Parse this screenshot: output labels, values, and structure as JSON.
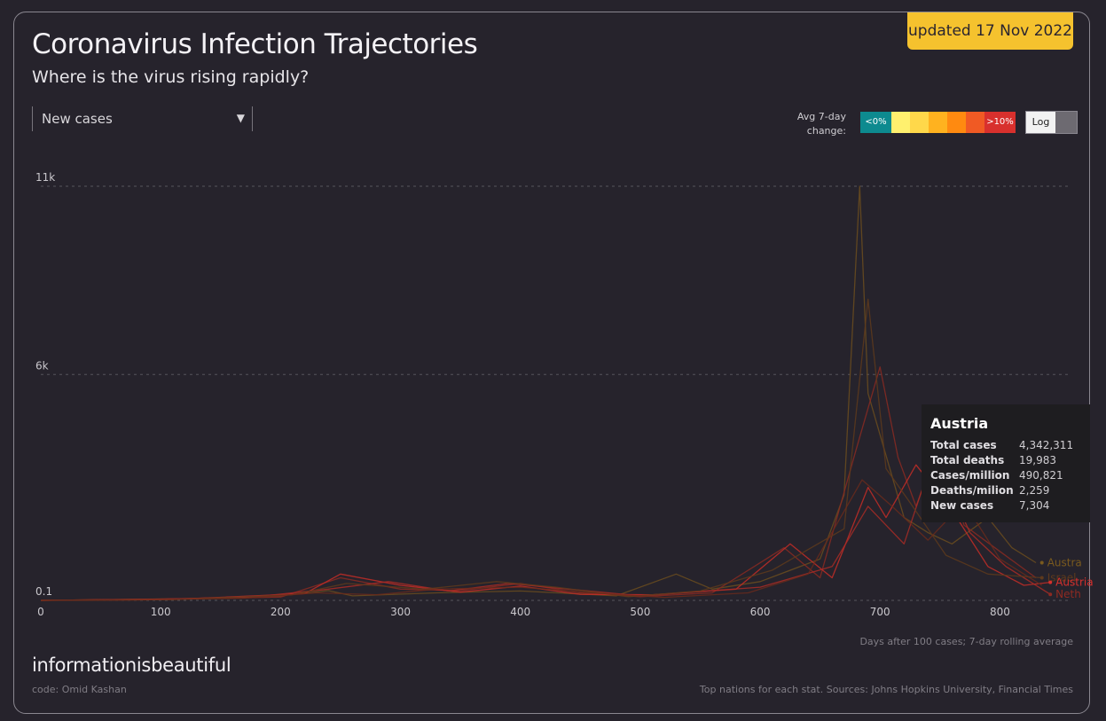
{
  "header": {
    "updated": "updated 17 Nov 2022",
    "title": "Coronavirus Infection Trajectories",
    "subtitle": "Where is the virus rising rapidly?"
  },
  "controls": {
    "stat_select": "New cases",
    "avg_label_line1": "Avg 7-day",
    "avg_label_line2": "change:",
    "legend": [
      {
        "label": "<0%",
        "color": "#0d8a8f"
      },
      {
        "label": "",
        "color": "#fff06e"
      },
      {
        "label": "",
        "color": "#ffd84a"
      },
      {
        "label": "",
        "color": "#ffb21f"
      },
      {
        "label": "",
        "color": "#ff8a10"
      },
      {
        "label": "",
        "color": "#f05a24"
      },
      {
        "label": ">10%",
        "color": "#d8302d"
      }
    ],
    "log_label": "Log",
    "log_on": false
  },
  "tooltip": {
    "country": "Austria",
    "rows": [
      {
        "label": "Total cases",
        "value": "4,342,311"
      },
      {
        "label": "Total deaths",
        "value": "19,983"
      },
      {
        "label": "Cases/million",
        "value": "490,821"
      },
      {
        "label": "Deaths/milion",
        "value": "2,259"
      },
      {
        "label": "New cases",
        "value": "7,304"
      }
    ]
  },
  "footer": {
    "axis_note": "Days after 100 cases; 7-day rolling average",
    "brand": "informationisbeautiful",
    "credit": "code: Omid Kashan",
    "sources": "Top nations for each stat. Sources: Johns Hopkins University, Financial Times"
  },
  "chart_data": {
    "type": "line",
    "xlim": [
      0,
      850
    ],
    "ylim": [
      0,
      11000
    ],
    "x_ticks": [
      0,
      100,
      200,
      300,
      400,
      500,
      600,
      700,
      800
    ],
    "y_ticks": [
      {
        "value": 0.1,
        "label": "0.1"
      },
      {
        "value": 6000,
        "label": "6k"
      },
      {
        "value": 11000,
        "label": "11k"
      }
    ],
    "grid": true,
    "end_labels": [
      {
        "label": "Austra",
        "x": 835,
        "y": 1000,
        "color": "#7a5a1e"
      },
      {
        "label": "Israel",
        "x": 835,
        "y": 600,
        "color": "#5e3a1c"
      },
      {
        "label": "Austria",
        "x": 842,
        "y": 480,
        "color": "#d8302d"
      },
      {
        "label": "Neth",
        "x": 842,
        "y": 160,
        "color": "#8e2a22"
      }
    ],
    "series": [
      {
        "color": "#6b4c1f",
        "points": [
          [
            0,
            0
          ],
          [
            60,
            20
          ],
          [
            150,
            60
          ],
          [
            200,
            120
          ],
          [
            240,
            260
          ],
          [
            260,
            120
          ],
          [
            330,
            200
          ],
          [
            400,
            250
          ],
          [
            480,
            120
          ],
          [
            530,
            700
          ],
          [
            560,
            300
          ],
          [
            600,
            500
          ],
          [
            650,
            1100
          ],
          [
            670,
            2800
          ],
          [
            683,
            11000
          ],
          [
            690,
            5500
          ],
          [
            700,
            4400
          ],
          [
            720,
            2200
          ],
          [
            740,
            1800
          ],
          [
            760,
            1500
          ],
          [
            790,
            2200
          ],
          [
            810,
            1400
          ],
          [
            830,
            1000
          ]
        ]
      },
      {
        "color": "#8a2a22",
        "points": [
          [
            0,
            0
          ],
          [
            100,
            30
          ],
          [
            200,
            90
          ],
          [
            250,
            600
          ],
          [
            300,
            300
          ],
          [
            350,
            260
          ],
          [
            400,
            450
          ],
          [
            450,
            200
          ],
          [
            500,
            100
          ],
          [
            560,
            200
          ],
          [
            620,
            1400
          ],
          [
            650,
            600
          ],
          [
            680,
            4000
          ],
          [
            700,
            6200
          ],
          [
            715,
            3800
          ],
          [
            730,
            2500
          ],
          [
            750,
            4200
          ],
          [
            770,
            2000
          ],
          [
            800,
            1300
          ],
          [
            830,
            600
          ]
        ]
      },
      {
        "color": "#c42d27",
        "points": [
          [
            0,
            0
          ],
          [
            120,
            40
          ],
          [
            220,
            180
          ],
          [
            250,
            700
          ],
          [
            300,
            400
          ],
          [
            350,
            220
          ],
          [
            400,
            380
          ],
          [
            450,
            160
          ],
          [
            510,
            150
          ],
          [
            580,
            300
          ],
          [
            625,
            1500
          ],
          [
            660,
            600
          ],
          [
            690,
            3000
          ],
          [
            705,
            2200
          ],
          [
            730,
            3600
          ],
          [
            760,
            2400
          ],
          [
            790,
            900
          ],
          [
            820,
            400
          ],
          [
            842,
            480
          ]
        ]
      },
      {
        "color": "#a82c26",
        "points": [
          [
            0,
            0
          ],
          [
            90,
            20
          ],
          [
            180,
            100
          ],
          [
            240,
            300
          ],
          [
            290,
            500
          ],
          [
            340,
            250
          ],
          [
            390,
            450
          ],
          [
            440,
            300
          ],
          [
            500,
            120
          ],
          [
            600,
            350
          ],
          [
            660,
            900
          ],
          [
            690,
            2500
          ],
          [
            720,
            1500
          ],
          [
            745,
            3900
          ],
          [
            775,
            1800
          ],
          [
            805,
            900
          ],
          [
            842,
            160
          ]
        ]
      },
      {
        "color": "#5e3a1c",
        "points": [
          [
            0,
            0
          ],
          [
            110,
            20
          ],
          [
            210,
            150
          ],
          [
            255,
            450
          ],
          [
            320,
            300
          ],
          [
            380,
            500
          ],
          [
            430,
            350
          ],
          [
            490,
            100
          ],
          [
            550,
            250
          ],
          [
            610,
            800
          ],
          [
            670,
            1900
          ],
          [
            690,
            8000
          ],
          [
            705,
            3500
          ],
          [
            725,
            2600
          ],
          [
            755,
            1200
          ],
          [
            790,
            700
          ],
          [
            835,
            600
          ]
        ]
      },
      {
        "color": "#6a2a1c",
        "points": [
          [
            0,
            0
          ],
          [
            80,
            10
          ],
          [
            170,
            60
          ],
          [
            230,
            200
          ],
          [
            280,
            150
          ],
          [
            330,
            300
          ],
          [
            400,
            350
          ],
          [
            460,
            200
          ],
          [
            520,
            80
          ],
          [
            590,
            200
          ],
          [
            640,
            700
          ],
          [
            685,
            3200
          ],
          [
            710,
            2500
          ],
          [
            740,
            1600
          ],
          [
            770,
            2600
          ],
          [
            800,
            1100
          ],
          [
            835,
            400
          ]
        ]
      }
    ]
  }
}
